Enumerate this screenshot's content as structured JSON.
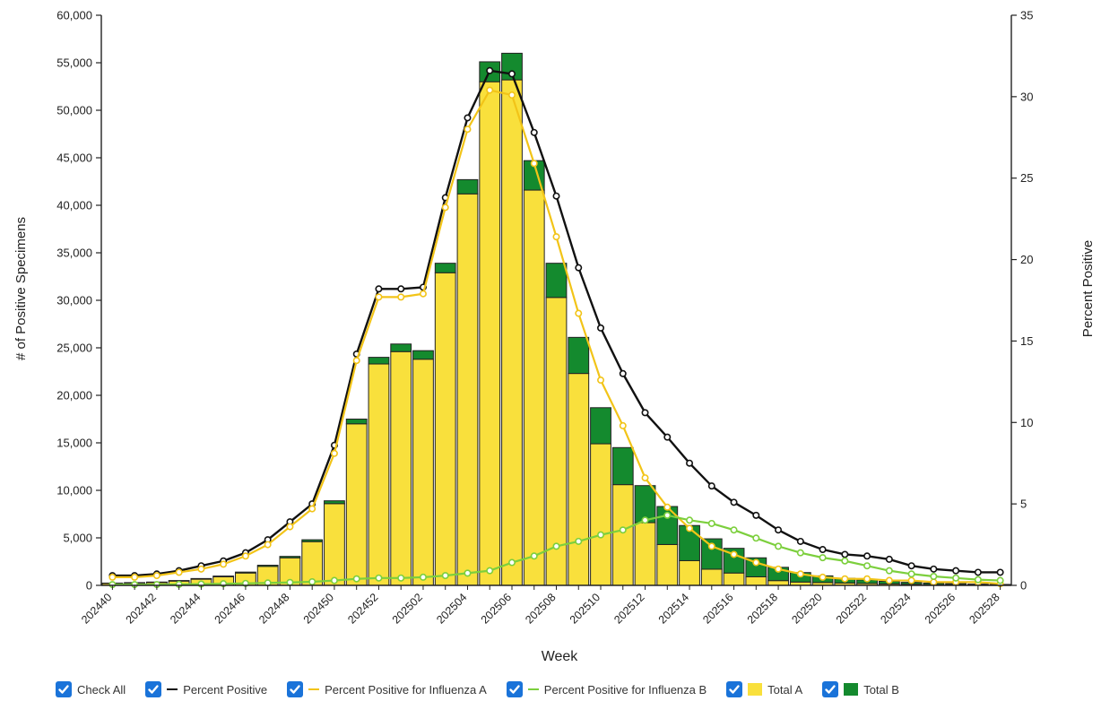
{
  "chart_data": {
    "type": "bar",
    "xlabel": "Week",
    "ylabel_left": "# of Positive Specimens",
    "ylabel_right": "Percent Positive",
    "ylim_left": [
      0,
      60000
    ],
    "ylim_right": [
      0,
      35
    ],
    "left_ticks": [
      "0",
      "5,000",
      "10,000",
      "15,000",
      "20,000",
      "25,000",
      "30,000",
      "35,000",
      "40,000",
      "45,000",
      "50,000",
      "55,000",
      "60,000"
    ],
    "right_ticks": [
      "0",
      "5",
      "10",
      "15",
      "20",
      "25",
      "30",
      "35"
    ],
    "x_tick_labels": [
      "202440",
      "202442",
      "202444",
      "202446",
      "202448",
      "202450",
      "202452",
      "202502",
      "202504",
      "202506",
      "202508",
      "202510",
      "202512",
      "202514",
      "202516",
      "202518",
      "202520",
      "202522",
      "202524",
      "202526",
      "202528"
    ],
    "categories": [
      "202440",
      "202441",
      "202442",
      "202443",
      "202444",
      "202445",
      "202446",
      "202447",
      "202448",
      "202449",
      "202450",
      "202451",
      "202452",
      "202501",
      "202502",
      "202503",
      "202504",
      "202505",
      "202506",
      "202507",
      "202508",
      "202509",
      "202510",
      "202511",
      "202512",
      "202513",
      "202514",
      "202515",
      "202516",
      "202517",
      "202518",
      "202519",
      "202520",
      "202521",
      "202522",
      "202523",
      "202524",
      "202525",
      "202526",
      "202527",
      "202528"
    ],
    "stacked_bars": [
      {
        "name": "Total A",
        "color": "#f9e03c",
        "axis": "left",
        "values": [
          200,
          250,
          300,
          450,
          650,
          900,
          1300,
          2000,
          2900,
          4600,
          8600,
          17000,
          23300,
          24600,
          23800,
          32900,
          41200,
          53000,
          53200,
          41600,
          30300,
          22300,
          14900,
          10600,
          6600,
          4300,
          2600,
          1700,
          1300,
          900,
          500,
          350,
          300,
          250,
          200,
          150,
          120,
          90,
          70,
          50,
          40
        ]
      },
      {
        "name": "Total B",
        "color": "#148a2e",
        "axis": "left",
        "values": [
          40,
          40,
          50,
          60,
          70,
          80,
          100,
          120,
          150,
          200,
          300,
          500,
          700,
          800,
          900,
          1000,
          1500,
          2100,
          2800,
          3100,
          3600,
          3800,
          3800,
          3900,
          3900,
          4000,
          3700,
          3200,
          2600,
          2000,
          1400,
          1000,
          700,
          500,
          380,
          280,
          200,
          150,
          110,
          80,
          60
        ]
      }
    ],
    "series": [
      {
        "name": "Percent Positive",
        "color": "#111111",
        "axis": "right",
        "values": [
          0.6,
          0.6,
          0.7,
          0.9,
          1.2,
          1.5,
          2.0,
          2.8,
          3.9,
          5.0,
          8.6,
          14.2,
          18.2,
          18.2,
          18.3,
          23.8,
          28.7,
          31.6,
          31.4,
          27.8,
          23.9,
          19.5,
          15.8,
          13.0,
          10.6,
          9.1,
          7.5,
          6.1,
          5.1,
          4.3,
          3.4,
          2.7,
          2.2,
          1.9,
          1.8,
          1.6,
          1.2,
          1.0,
          0.9,
          0.8,
          0.8
        ]
      },
      {
        "name": "Percent Positive for Influenza A",
        "color": "#f2c418",
        "axis": "right",
        "values": [
          0.5,
          0.5,
          0.6,
          0.8,
          1.0,
          1.3,
          1.8,
          2.5,
          3.6,
          4.7,
          8.1,
          13.8,
          17.7,
          17.7,
          17.9,
          23.2,
          28.0,
          30.4,
          30.1,
          25.9,
          21.4,
          16.7,
          12.6,
          9.8,
          6.6,
          4.8,
          3.5,
          2.4,
          1.9,
          1.4,
          1.0,
          0.7,
          0.5,
          0.4,
          0.4,
          0.3,
          0.3,
          0.2,
          0.2,
          0.2,
          0.1
        ]
      },
      {
        "name": "Percent Positive for Influenza B",
        "color": "#7ccf3d",
        "axis": "right",
        "values": [
          0.05,
          0.05,
          0.05,
          0.06,
          0.08,
          0.1,
          0.12,
          0.15,
          0.18,
          0.22,
          0.3,
          0.4,
          0.45,
          0.45,
          0.5,
          0.6,
          0.75,
          0.9,
          1.4,
          1.8,
          2.4,
          2.7,
          3.1,
          3.4,
          4.0,
          4.3,
          4.0,
          3.8,
          3.4,
          2.9,
          2.4,
          2.0,
          1.7,
          1.5,
          1.2,
          0.9,
          0.7,
          0.55,
          0.45,
          0.35,
          0.3
        ]
      }
    ]
  },
  "legend": {
    "items": [
      {
        "label": "Check All",
        "marker": "none",
        "color": ""
      },
      {
        "label": "Percent Positive",
        "marker": "line",
        "color": "#111111"
      },
      {
        "label": "Percent Positive for Influenza A",
        "marker": "line",
        "color": "#f2c418"
      },
      {
        "label": "Percent Positive for Influenza B",
        "marker": "line",
        "color": "#7ccf3d"
      },
      {
        "label": "Total A",
        "marker": "box",
        "color": "#f9e03c"
      },
      {
        "label": "Total B",
        "marker": "box",
        "color": "#148a2e"
      }
    ]
  },
  "colors": {
    "checkbox": "#1a73d9",
    "bar_outline": "#222222",
    "axis": "#222222"
  }
}
